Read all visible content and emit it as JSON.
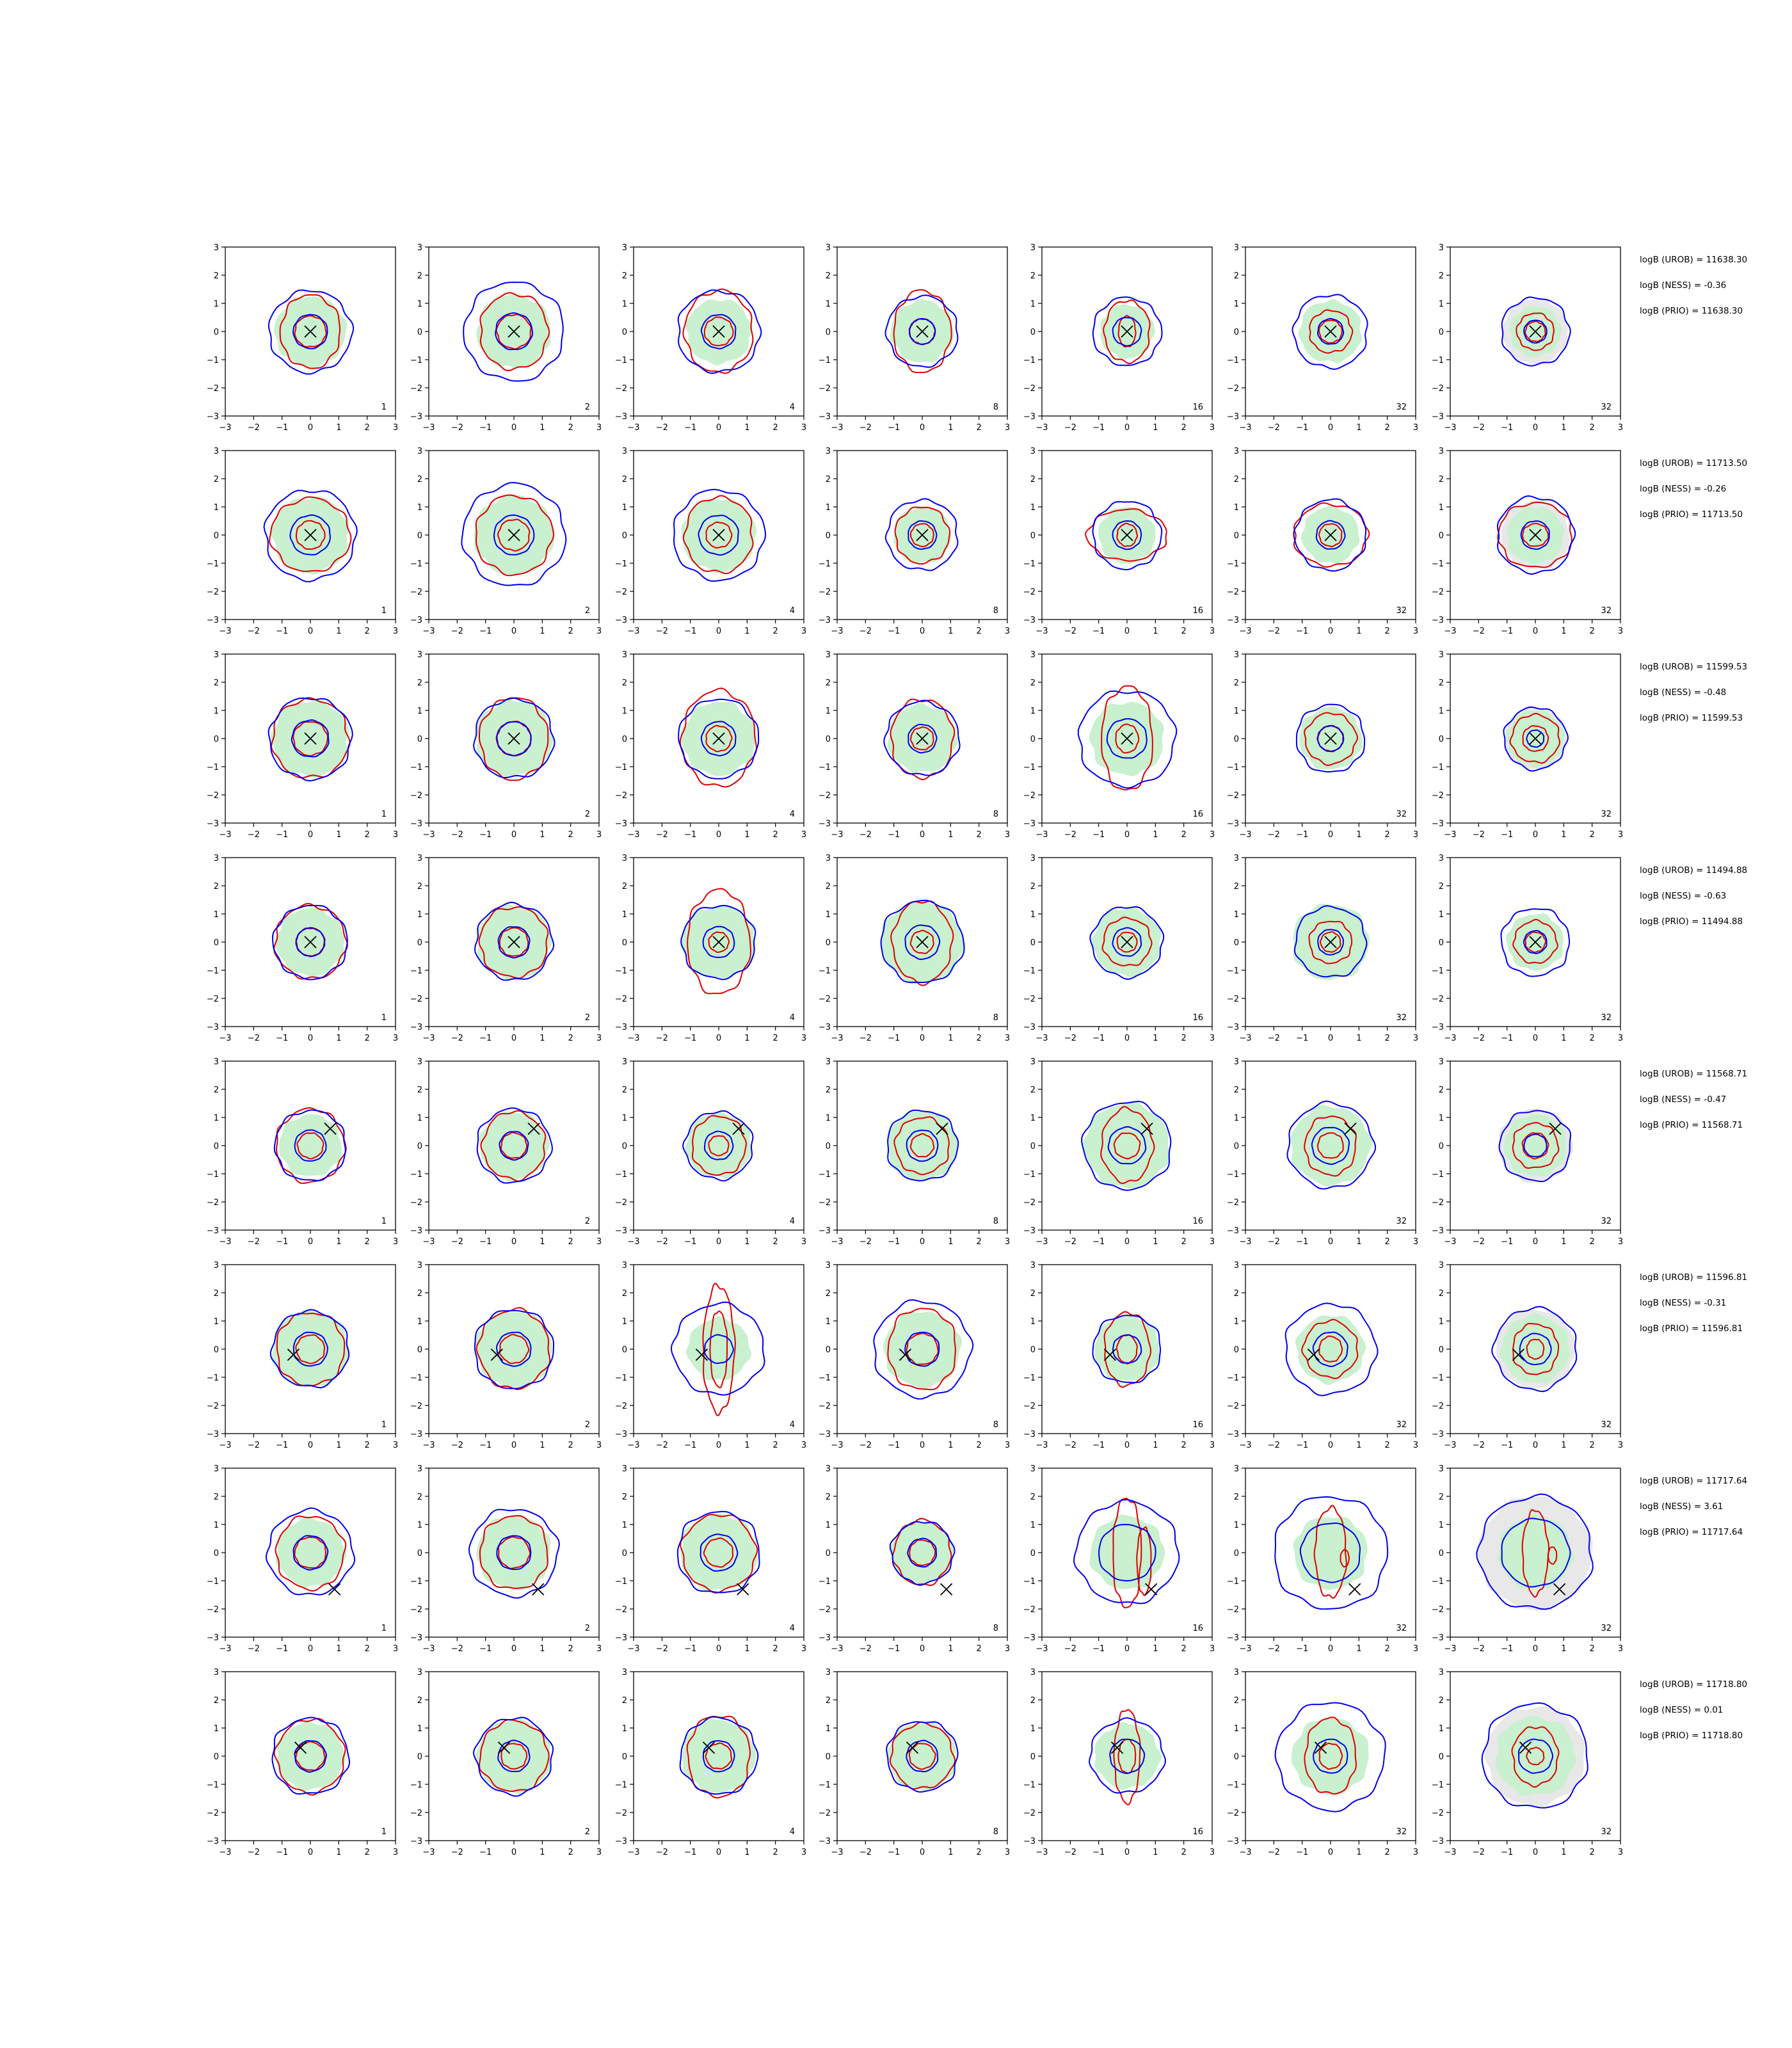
{
  "chart_data": {
    "type": "contour-grid",
    "xlim": [
      -3,
      3
    ],
    "ylim": [
      -3,
      3
    ],
    "ticks": [
      "−3",
      "−2",
      "−1",
      "0",
      "1",
      "2",
      "3"
    ],
    "column_labels": [
      "1",
      "2",
      "4",
      "8",
      "16",
      "32",
      "32"
    ],
    "colors": {
      "shaded": "#c9f0cf",
      "blue": "#0000ee",
      "red": "#dd0000",
      "grey": "#e8e8e8",
      "marker": "#000000"
    },
    "rows": [
      {
        "marker": [
          0,
          0
        ],
        "texts": [
          "logB (UROB) = 11638.30",
          "logB (NESS) = -0.36",
          "logB (PRIO) = 11638.30"
        ]
      },
      {
        "marker": [
          0,
          0
        ],
        "texts": [
          "logB (UROB) = 11713.50",
          "logB (NESS) = -0.26",
          "logB (PRIO) = 11713.50"
        ]
      },
      {
        "marker": [
          0,
          0
        ],
        "texts": [
          "logB (UROB) = 11599.53",
          "logB (NESS) = -0.48",
          "logB (PRIO) = 11599.53"
        ]
      },
      {
        "marker": [
          0,
          0
        ],
        "texts": [
          "logB (UROB) = 11494.88",
          "logB (NESS) = -0.63",
          "logB (PRIO) = 11494.88"
        ]
      },
      {
        "marker": [
          0.7,
          0.6
        ],
        "texts": [
          "logB (UROB) = 11568.71",
          "logB (NESS) = -0.47",
          "logB (PRIO) = 11568.71"
        ]
      },
      {
        "marker": [
          -0.6,
          -0.2
        ],
        "texts": [
          "logB (UROB) = 11596.81",
          "logB (NESS) = -0.31",
          "logB (PRIO) = 11596.81"
        ]
      },
      {
        "marker": [
          0.85,
          -1.3
        ],
        "texts": [
          "logB (UROB) = 11717.64",
          "logB (NESS) = 3.61",
          "logB (PRIO) = 11717.64"
        ]
      },
      {
        "marker": [
          -0.35,
          0.3
        ],
        "texts": [
          "logB (UROB) = 11718.80",
          "logB (NESS) = 0.01",
          "logB (PRIO) = 11718.80"
        ]
      }
    ],
    "panel_shapes": [
      [
        {
          "shade": 1.25,
          "outer": 1.45,
          "ro": [
            1.05,
            1.3
          ],
          "ri": [
            0.55,
            0.55
          ],
          "bi": 0.6
        },
        {
          "shade": 1.3,
          "outer": 1.75,
          "ro": [
            1.2,
            1.35
          ],
          "ri": [
            0.6,
            0.6
          ],
          "bi": 0.65
        },
        {
          "shade": 1.15,
          "outer": 1.45,
          "ro": [
            1.2,
            1.45
          ],
          "ri": [
            0.5,
            0.5
          ],
          "bi": 0.6
        },
        {
          "shade": 1.1,
          "outer": 1.25,
          "ro": [
            1.0,
            1.45
          ],
          "ri": [
            0.45,
            0.45
          ],
          "bi": 0.45
        },
        {
          "shade": 0.95,
          "outer": 1.2,
          "ro": [
            0.8,
            1.1
          ],
          "ri": [
            0.3,
            0.55
          ],
          "bi": 0.5
        },
        {
          "shade": 1.1,
          "outer": 1.3,
          "ro": [
            0.75,
            0.75
          ],
          "ri": [
            0.4,
            0.4
          ],
          "bi": 0.45
        },
        {
          "shade": 0.9,
          "outer": 1.2,
          "ro": [
            0.65,
            0.65
          ],
          "ri": [
            0.35,
            0.35
          ],
          "bi": 0.4,
          "grey": 1.15
        }
      ],
      [
        {
          "shade": 1.35,
          "outer": 1.6,
          "ro": [
            1.4,
            1.3
          ],
          "ri": [
            0.5,
            0.5
          ],
          "bi": 0.7
        },
        {
          "shade": 1.4,
          "outer": 1.8,
          "ro": [
            1.35,
            1.4
          ],
          "ri": [
            0.55,
            0.55
          ],
          "bi": 0.7
        },
        {
          "shade": 1.3,
          "outer": 1.6,
          "ro": [
            1.2,
            1.35
          ],
          "ri": [
            0.45,
            0.45
          ],
          "bi": 0.7
        },
        {
          "shade": 1.0,
          "outer": 1.25,
          "ro": [
            0.95,
            1.0
          ],
          "ri": [
            0.4,
            0.4
          ],
          "bi": 0.5
        },
        {
          "shade": 1.0,
          "outer": 1.2,
          "ro": [
            1.4,
            0.9
          ],
          "ri": [
            0.35,
            0.4
          ],
          "bi": 0.5
        },
        {
          "shade": 1.0,
          "outer": 1.25,
          "ro": [
            1.3,
            1.1
          ],
          "ri": [
            0.4,
            0.4
          ],
          "bi": 0.5
        },
        {
          "shade": 1.0,
          "outer": 1.35,
          "ro": [
            1.3,
            1.15
          ],
          "ri": [
            0.45,
            0.4
          ],
          "bi": 0.5,
          "grey": 1.2
        }
      ],
      [
        {
          "shade": 1.35,
          "outer": 1.45,
          "ro": [
            1.35,
            1.4
          ],
          "ri": [
            0.6,
            0.6
          ],
          "bi": 0.65
        },
        {
          "shade": 1.35,
          "outer": 1.4,
          "ro": [
            1.2,
            1.45
          ],
          "ri": [
            0.6,
            0.6
          ],
          "bi": 0.6
        },
        {
          "shade": 1.3,
          "outer": 1.4,
          "ro": [
            1.3,
            1.7
          ],
          "ri": [
            0.45,
            0.45
          ],
          "bi": 0.6
        },
        {
          "shade": 1.2,
          "outer": 1.3,
          "ro": [
            1.1,
            1.4
          ],
          "ri": [
            0.4,
            0.4
          ],
          "bi": 0.5
        },
        {
          "shade": 1.3,
          "outer": 1.7,
          "ro": [
            0.9,
            1.85
          ],
          "ri": [
            0.4,
            0.5
          ],
          "bi": 0.7
        },
        {
          "shade": 1.1,
          "outer": 1.2,
          "ro": [
            0.9,
            0.9
          ],
          "ri": [
            0.45,
            0.45
          ],
          "bi": 0.45
        },
        {
          "shade": 1.0,
          "outer": 1.1,
          "ro": [
            0.85,
            0.85
          ],
          "ri": [
            0.45,
            0.45
          ],
          "bi": 0.3,
          "grey": 1.1
        }
      ],
      [
        {
          "shade": 1.2,
          "outer": 1.3,
          "ro": [
            1.25,
            1.3
          ],
          "ri": [
            0.5,
            0.5
          ],
          "bi": 0.5
        },
        {
          "shade": 1.3,
          "outer": 1.35,
          "ro": [
            1.2,
            1.25
          ],
          "ri": [
            0.5,
            0.5
          ],
          "bi": 0.55
        },
        {
          "shade": 1.3,
          "outer": 1.3,
          "ro": [
            1.1,
            1.85
          ],
          "ri": [
            0.35,
            0.35
          ],
          "bi": 0.55
        },
        {
          "shade": 1.45,
          "outer": 1.45,
          "ro": [
            1.05,
            1.45
          ],
          "ri": [
            0.4,
            0.4
          ],
          "bi": 0.6
        },
        {
          "shade": 1.2,
          "outer": 1.25,
          "ro": [
            0.85,
            0.85
          ],
          "ri": [
            0.35,
            0.35
          ],
          "bi": 0.5
        },
        {
          "shade": 1.35,
          "outer": 1.25,
          "ro": [
            0.75,
            0.75
          ],
          "ri": [
            0.35,
            0.35
          ],
          "bi": 0.45
        },
        {
          "shade": 1.0,
          "outer": 1.2,
          "ro": [
            0.75,
            0.75
          ],
          "ri": [
            0.35,
            0.35
          ],
          "bi": 0.4
        }
      ],
      [
        {
          "shade": 1.1,
          "outer": 1.25,
          "ro": [
            1.2,
            1.3
          ],
          "ri": [
            0.45,
            0.45
          ],
          "bi": 0.55
        },
        {
          "shade": 1.2,
          "outer": 1.3,
          "ro": [
            1.1,
            1.2
          ],
          "ri": [
            0.45,
            0.45
          ],
          "bi": 0.5
        },
        {
          "shade": 1.15,
          "outer": 1.2,
          "ro": [
            0.95,
            1.05
          ],
          "ri": [
            0.35,
            0.35
          ],
          "bi": 0.5
        },
        {
          "shade": 1.25,
          "outer": 1.25,
          "ro": [
            0.95,
            1.0
          ],
          "ri": [
            0.4,
            0.4
          ],
          "bi": 0.55
        },
        {
          "shade": 1.5,
          "outer": 1.55,
          "ro": [
            0.9,
            1.3
          ],
          "ri": [
            0.45,
            0.45
          ],
          "bi": 0.65
        },
        {
          "shade": 1.4,
          "outer": 1.5,
          "ro": [
            0.9,
            1.05
          ],
          "ri": [
            0.45,
            0.45
          ],
          "bi": 0.65
        },
        {
          "shade": 1.1,
          "outer": 1.25,
          "ro": [
            0.8,
            0.8
          ],
          "ri": [
            0.45,
            0.45
          ],
          "bi": 0.4,
          "grey": 1.3
        }
      ],
      [
        {
          "shade": 1.35,
          "outer": 1.35,
          "ro": [
            1.2,
            1.3
          ],
          "ri": [
            0.5,
            0.5
          ],
          "bi": 0.6
        },
        {
          "shade": 1.35,
          "outer": 1.4,
          "ro": [
            1.25,
            1.4
          ],
          "ri": [
            0.5,
            0.5
          ],
          "bi": 0.6
        },
        {
          "shade": 1.1,
          "outer": 1.6,
          "ro": [
            0.55,
            2.25
          ],
          "ri": [
            0.3,
            1.35
          ],
          "bi": 0.5
        },
        {
          "shade": 1.35,
          "outer": 1.7,
          "ro": [
            1.2,
            1.45
          ],
          "ri": [
            0.55,
            0.55
          ],
          "bi": 0.6
        },
        {
          "shade": 1.15,
          "outer": 1.2,
          "ro": [
            0.8,
            1.3
          ],
          "ri": [
            0.35,
            0.5
          ],
          "bi": 0.5
        },
        {
          "shade": 1.2,
          "outer": 1.6,
          "ro": [
            0.95,
            1.0
          ],
          "ri": [
            0.4,
            0.45
          ],
          "bi": 0.6
        },
        {
          "shade": 1.2,
          "outer": 1.45,
          "ro": [
            0.8,
            0.9
          ],
          "ri": [
            0.3,
            0.35
          ],
          "bi": 0.55,
          "grey": 1.4
        }
      ],
      [
        {
          "shade": 1.2,
          "outer": 1.5,
          "ro": [
            1.2,
            1.3
          ],
          "ri": [
            0.55,
            0.55
          ],
          "bi": 0.6
        },
        {
          "shade": 1.3,
          "outer": 1.55,
          "ro": [
            1.2,
            1.3
          ],
          "ri": [
            0.55,
            0.55
          ],
          "bi": 0.6
        },
        {
          "shade": 1.35,
          "outer": 1.45,
          "ro": [
            1.3,
            1.35
          ],
          "ri": [
            0.5,
            0.5
          ],
          "bi": 0.65
        },
        {
          "shade": 1.1,
          "outer": 1.1,
          "ro": [
            1.0,
            1.15
          ],
          "ri": [
            0.45,
            0.45
          ],
          "bi": 0.5
        },
        {
          "shade": 1.3,
          "outer": 1.8,
          "ro": [
            0.5,
            1.95
          ],
          "ri": [
            0.25,
            1.2
          ],
          "bi": 1.0,
          "roff": [
            0.6,
            -0.3
          ]
        },
        {
          "shade": 1.3,
          "outer": 2.0,
          "ro": [
            0.55,
            1.6
          ],
          "ri": [
            0.15,
            0.3
          ],
          "bi": 1.05,
          "roff": [
            0.5,
            -0.2
          ]
        },
        {
          "shade": 1.3,
          "outer": 2.0,
          "ro": [
            0.45,
            1.5
          ],
          "ri": [
            0.15,
            0.3
          ],
          "bi": 1.2,
          "roff": [
            0.6,
            -0.1
          ],
          "grey": 2.0
        }
      ],
      [
        {
          "shade": 1.2,
          "outer": 1.35,
          "ro": [
            1.2,
            1.3
          ],
          "ri": [
            0.5,
            0.5
          ],
          "bi": 0.55
        },
        {
          "shade": 1.3,
          "outer": 1.35,
          "ro": [
            1.2,
            1.25
          ],
          "ri": [
            0.45,
            0.45
          ],
          "bi": 0.55
        },
        {
          "shade": 1.3,
          "outer": 1.35,
          "ro": [
            1.1,
            1.45
          ],
          "ri": [
            0.45,
            0.45
          ],
          "bi": 0.55
        },
        {
          "shade": 1.2,
          "outer": 1.25,
          "ro": [
            1.1,
            1.15
          ],
          "ri": [
            0.45,
            0.45
          ],
          "bi": 0.55
        },
        {
          "shade": 1.15,
          "outer": 1.3,
          "ro": [
            0.45,
            1.65
          ],
          "ri": [
            0.3,
            0.6
          ],
          "bi": 0.6
        },
        {
          "shade": 1.35,
          "outer": 1.9,
          "ro": [
            0.9,
            1.35
          ],
          "ri": [
            0.4,
            0.45
          ],
          "bi": 0.6
        },
        {
          "shade": 1.4,
          "outer": 1.85,
          "ro": [
            0.8,
            1.05
          ],
          "ri": [
            0.3,
            0.3
          ],
          "bi": 0.6,
          "grey": 1.75
        }
      ]
    ]
  }
}
